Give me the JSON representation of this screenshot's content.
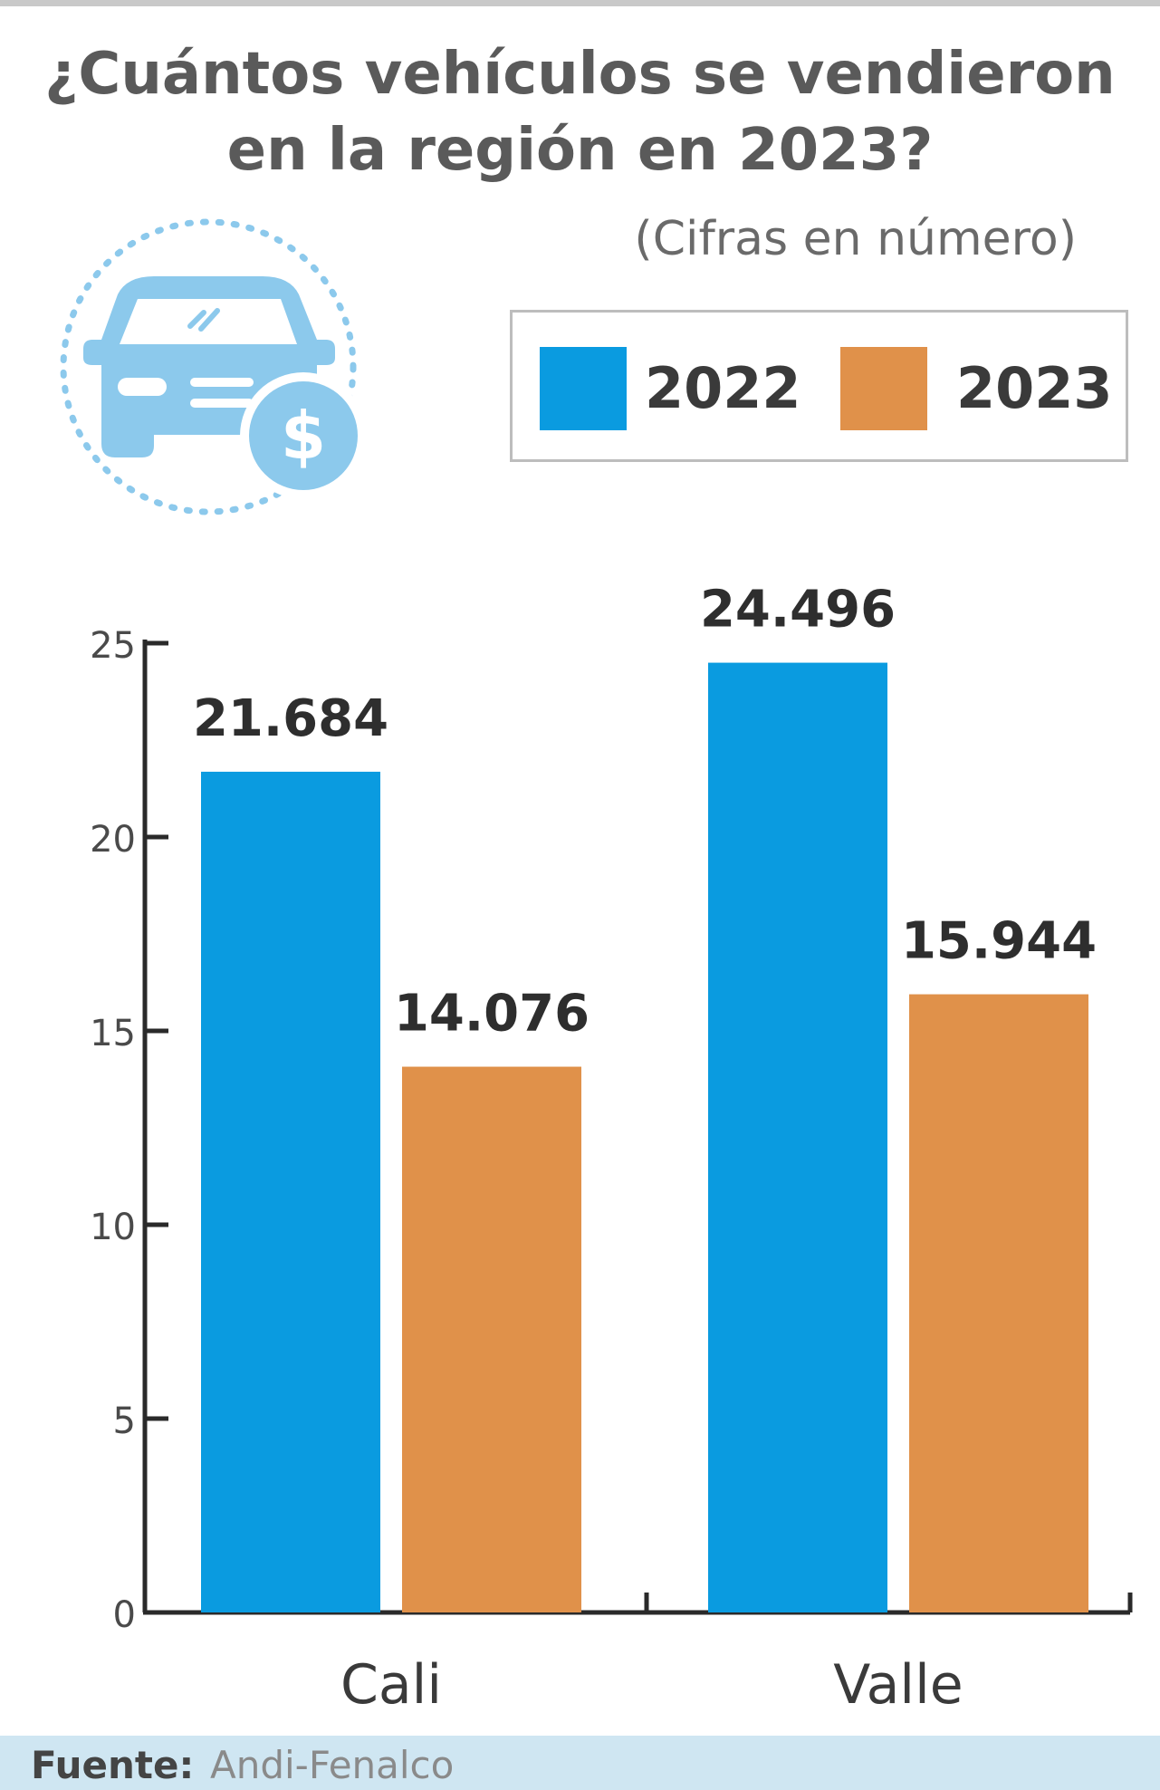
{
  "header": {
    "title": "¿Cuántos vehículos se vendieron en la región en 2023?",
    "subtitle": "(Cifras en número)",
    "icon": "car-dollar-icon"
  },
  "legend": [
    {
      "label": "2022",
      "color": "#0a9be0"
    },
    {
      "label": "2023",
      "color": "#e0914a"
    }
  ],
  "chart_data": {
    "type": "bar",
    "categories": [
      "Cali",
      "Valle"
    ],
    "series": [
      {
        "name": "2022",
        "values": [
          21.684,
          24.496
        ],
        "labels": [
          "21.684",
          "24.496"
        ],
        "color": "#0a9be0"
      },
      {
        "name": "2023",
        "values": [
          14.076,
          15.944
        ],
        "labels": [
          "14.076",
          "15.944"
        ],
        "color": "#e0914a"
      }
    ],
    "yticks": [
      "0",
      "5",
      "10",
      "15",
      "20",
      "25"
    ],
    "ylim": [
      0,
      25
    ],
    "grid": false,
    "legend_position": "top-right"
  },
  "footer": {
    "label": "Fuente:",
    "value": "Andi-Fenalco"
  }
}
